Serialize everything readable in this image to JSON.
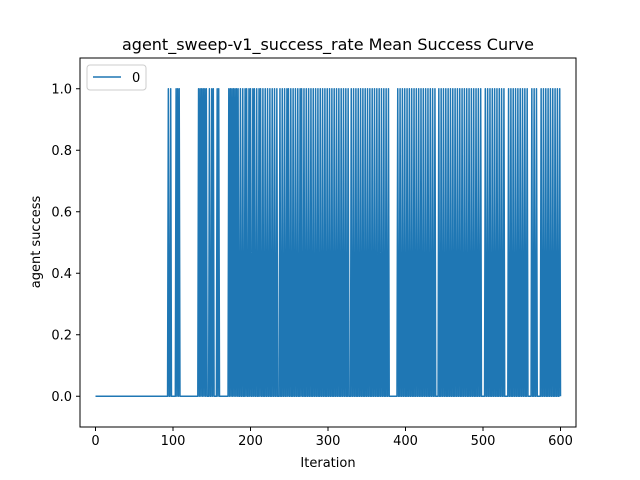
{
  "chart_data": {
    "type": "line",
    "title": "agent_sweep-v1_success_rate Mean Success Curve",
    "xlabel": "Iteration",
    "ylabel": "agent success",
    "xlim": [
      -20,
      620
    ],
    "ylim": [
      -0.1,
      1.1
    ],
    "x_ticks": [
      0,
      100,
      200,
      300,
      400,
      500,
      600
    ],
    "y_ticks": [
      0.0,
      0.2,
      0.4,
      0.6,
      0.8,
      1.0
    ],
    "x_tick_labels": [
      "0",
      "100",
      "200",
      "300",
      "400",
      "500",
      "600"
    ],
    "y_tick_labels": [
      "0.0",
      "0.2",
      "0.4",
      "0.6",
      "0.8",
      "1.0"
    ],
    "grid": false,
    "legend_position": "upper-left",
    "series_color": "#1f77b4",
    "series": [
      {
        "name": "0",
        "success_iterations": [
          94,
          97,
          104,
          106,
          108,
          133,
          135,
          137,
          139,
          141,
          143,
          147,
          150,
          152,
          157,
          159,
          172,
          174,
          176,
          178,
          180,
          182,
          184,
          187,
          190,
          193,
          195,
          198,
          200,
          203,
          205,
          208,
          211,
          213,
          216,
          219,
          222,
          225,
          228,
          231,
          234,
          238,
          241,
          244,
          247,
          249,
          252,
          255,
          258,
          261,
          264,
          266,
          269,
          272,
          275,
          278,
          281,
          284,
          287,
          290,
          293,
          296,
          299,
          302,
          305,
          308,
          311,
          314,
          317,
          320,
          323,
          326,
          330,
          333,
          336,
          339,
          342,
          345,
          348,
          351,
          354,
          357,
          360,
          363,
          366,
          369,
          372,
          375,
          378,
          390,
          393,
          396,
          399,
          402,
          405,
          408,
          411,
          414,
          417,
          420,
          423,
          426,
          429,
          432,
          435,
          438,
          443,
          446,
          449,
          452,
          455,
          458,
          461,
          464,
          467,
          470,
          473,
          476,
          479,
          482,
          485,
          488,
          491,
          494,
          497,
          503,
          506,
          509,
          512,
          515,
          518,
          521,
          524,
          527,
          533,
          536,
          539,
          542,
          545,
          548,
          551,
          554,
          557,
          563,
          566,
          569,
          575,
          578,
          581,
          584,
          587,
          590,
          593,
          596,
          599
        ],
        "x_range": [
          0,
          600
        ],
        "default_value": 0
      }
    ]
  }
}
